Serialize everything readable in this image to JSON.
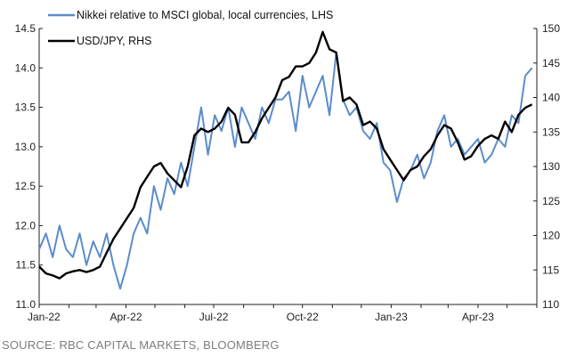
{
  "source": "SOURCE: RBC CAPITAL MARKETS, BLOOMBERG",
  "chart_data": {
    "type": "line",
    "title": "",
    "x_ticks": [
      "Jan-22",
      "Apr-22",
      "Jul-22",
      "Oct-22",
      "Jan-23",
      "Apr-23"
    ],
    "x_range": [
      "2022-01-01",
      "2023-06-01"
    ],
    "left_axis": {
      "ylim": [
        11.0,
        14.5
      ],
      "ticks": [
        "11.0",
        "11.5",
        "12.0",
        "12.5",
        "13.0",
        "13.5",
        "14.0",
        "14.5"
      ]
    },
    "right_axis": {
      "ylim": [
        110,
        150
      ],
      "ticks": [
        "110",
        "115",
        "120",
        "125",
        "130",
        "135",
        "140",
        "145",
        "150"
      ]
    },
    "grid": false,
    "legend_position": "top-left",
    "series": [
      {
        "name": "Nikkei relative to MSCI global, local currencies, LHS",
        "axis": "left",
        "color": "#5b8ccb",
        "x": [
          "2022-01-01",
          "2022-01-08",
          "2022-01-15",
          "2022-01-22",
          "2022-01-29",
          "2022-02-05",
          "2022-02-12",
          "2022-02-19",
          "2022-02-26",
          "2022-03-05",
          "2022-03-12",
          "2022-03-19",
          "2022-03-26",
          "2022-04-02",
          "2022-04-09",
          "2022-04-16",
          "2022-04-23",
          "2022-04-30",
          "2022-05-07",
          "2022-05-14",
          "2022-05-21",
          "2022-05-28",
          "2022-06-04",
          "2022-06-11",
          "2022-06-18",
          "2022-06-25",
          "2022-07-02",
          "2022-07-09",
          "2022-07-16",
          "2022-07-23",
          "2022-07-30",
          "2022-08-06",
          "2022-08-13",
          "2022-08-20",
          "2022-08-27",
          "2022-09-03",
          "2022-09-10",
          "2022-09-17",
          "2022-09-24",
          "2022-10-01",
          "2022-10-08",
          "2022-10-15",
          "2022-10-22",
          "2022-10-29",
          "2022-11-05",
          "2022-11-12",
          "2022-11-19",
          "2022-11-26",
          "2022-12-03",
          "2022-12-10",
          "2022-12-17",
          "2022-12-24",
          "2022-12-31",
          "2023-01-07",
          "2023-01-14",
          "2023-01-21",
          "2023-01-28",
          "2023-02-04",
          "2023-02-11",
          "2023-02-18",
          "2023-02-25",
          "2023-03-04",
          "2023-03-11",
          "2023-03-18",
          "2023-03-25",
          "2023-04-01",
          "2023-04-08",
          "2023-04-15",
          "2023-04-22",
          "2023-04-29",
          "2023-05-06",
          "2023-05-13",
          "2023-05-20",
          "2023-05-27"
        ],
        "values": [
          11.7,
          11.9,
          11.6,
          12.0,
          11.7,
          11.6,
          11.9,
          11.5,
          11.8,
          11.6,
          11.9,
          11.5,
          11.2,
          11.5,
          11.9,
          12.1,
          11.9,
          12.5,
          12.2,
          12.6,
          12.4,
          12.8,
          12.5,
          13.0,
          13.5,
          12.9,
          13.4,
          13.2,
          13.5,
          13.0,
          13.5,
          13.3,
          13.1,
          13.5,
          13.3,
          13.6,
          13.6,
          13.7,
          13.2,
          13.9,
          13.5,
          13.7,
          13.9,
          13.4,
          14.2,
          13.6,
          13.4,
          13.5,
          13.2,
          13.1,
          13.3,
          12.8,
          12.7,
          12.3,
          12.6,
          12.7,
          12.9,
          12.6,
          12.8,
          13.2,
          13.4,
          13.0,
          13.1,
          12.9,
          13.0,
          13.1,
          12.8,
          12.9,
          13.1,
          13.0,
          13.4,
          13.3,
          13.9,
          14.0
        ]
      },
      {
        "name": "USD/JPY, RHS",
        "axis": "right",
        "color": "#000000",
        "x": [
          "2022-01-01",
          "2022-01-08",
          "2022-01-15",
          "2022-01-22",
          "2022-01-29",
          "2022-02-05",
          "2022-02-12",
          "2022-02-19",
          "2022-02-26",
          "2022-03-05",
          "2022-03-12",
          "2022-03-19",
          "2022-03-26",
          "2022-04-02",
          "2022-04-09",
          "2022-04-16",
          "2022-04-23",
          "2022-04-30",
          "2022-05-07",
          "2022-05-14",
          "2022-05-21",
          "2022-05-28",
          "2022-06-04",
          "2022-06-11",
          "2022-06-18",
          "2022-06-25",
          "2022-07-02",
          "2022-07-09",
          "2022-07-16",
          "2022-07-23",
          "2022-07-30",
          "2022-08-06",
          "2022-08-13",
          "2022-08-20",
          "2022-08-27",
          "2022-09-03",
          "2022-09-10",
          "2022-09-17",
          "2022-09-24",
          "2022-10-01",
          "2022-10-08",
          "2022-10-15",
          "2022-10-22",
          "2022-10-29",
          "2022-11-05",
          "2022-11-12",
          "2022-11-19",
          "2022-11-26",
          "2022-12-03",
          "2022-12-10",
          "2022-12-17",
          "2022-12-24",
          "2022-12-31",
          "2023-01-07",
          "2023-01-14",
          "2023-01-21",
          "2023-01-28",
          "2023-02-04",
          "2023-02-11",
          "2023-02-18",
          "2023-02-25",
          "2023-03-04",
          "2023-03-11",
          "2023-03-18",
          "2023-03-25",
          "2023-04-01",
          "2023-04-08",
          "2023-04-15",
          "2023-04-22",
          "2023-04-29",
          "2023-05-06",
          "2023-05-13",
          "2023-05-20",
          "2023-05-27"
        ],
        "values": [
          115.5,
          114.5,
          114.2,
          113.8,
          114.5,
          114.8,
          115.0,
          114.7,
          115.0,
          115.5,
          117.5,
          119.5,
          121.0,
          122.5,
          124.0,
          127.0,
          128.5,
          130.0,
          130.5,
          129.0,
          128.0,
          127.0,
          130.0,
          134.5,
          135.5,
          135.0,
          135.5,
          136.5,
          138.5,
          137.5,
          133.5,
          133.5,
          135.0,
          137.0,
          138.5,
          140.0,
          142.5,
          143.0,
          144.5,
          144.5,
          145.0,
          146.5,
          149.5,
          147.0,
          146.5,
          139.5,
          140.0,
          139.0,
          136.0,
          136.5,
          135.5,
          132.5,
          131.0,
          129.5,
          128.0,
          129.5,
          130.0,
          131.5,
          132.5,
          134.5,
          136.0,
          135.5,
          133.5,
          131.0,
          131.5,
          133.0,
          134.0,
          134.5,
          134.0,
          136.5,
          135.0,
          137.5,
          138.5,
          139.0
        ]
      }
    ]
  }
}
